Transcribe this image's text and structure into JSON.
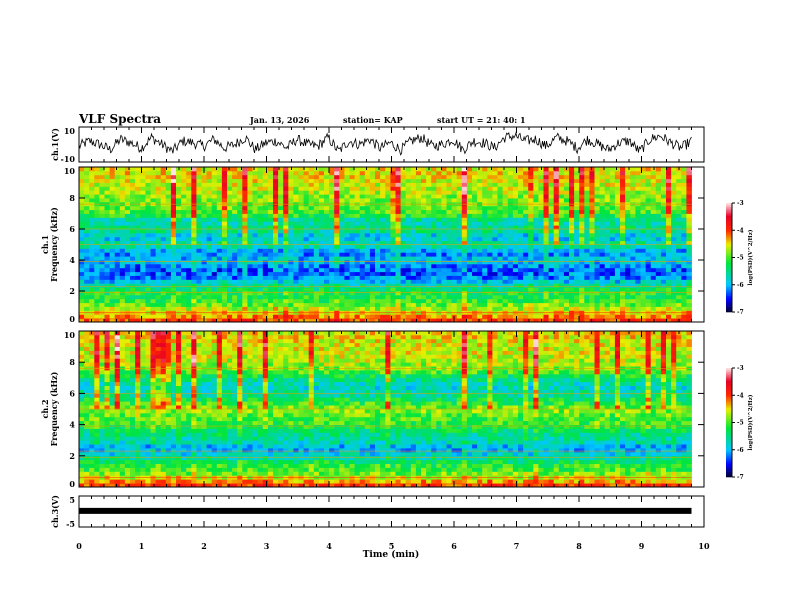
{
  "header": {
    "title": "VLF Spectra",
    "date": "Jan. 13, 2026",
    "station": "station= KAP",
    "start": "start UT =  21: 40: 1"
  },
  "chart_data": [
    {
      "type": "line",
      "name": "ch1-waveform",
      "ylabel": "ch.1(V)",
      "xlim": [
        0,
        10
      ],
      "ylim": [
        -10,
        10
      ],
      "yticks": [
        "10",
        "-10"
      ],
      "x_end": 9.8,
      "values": [
        -1,
        2,
        0,
        -3,
        3,
        1,
        -2,
        4,
        0,
        -4,
        2,
        1,
        -1,
        3,
        -2,
        0,
        4,
        -3,
        1,
        2,
        -2,
        3,
        0,
        -1,
        4,
        -4,
        2,
        0,
        3,
        -2,
        1,
        -3,
        2,
        4,
        -1,
        0,
        3,
        -3,
        2,
        1,
        -2,
        4,
        5,
        2,
        3,
        -1,
        4,
        2,
        -2,
        3,
        0,
        -3,
        1,
        2,
        -4,
        3,
        5,
        1,
        -2,
        2
      ]
    },
    {
      "type": "heatmap",
      "name": "ch1-spectrogram",
      "ylabel": "ch.1\nFrequency (kHz)",
      "xlim": [
        0,
        10
      ],
      "ylim": [
        0,
        10
      ],
      "yticks": [
        "0",
        "2",
        "4",
        "6",
        "8",
        "10"
      ],
      "x_end": 9.8,
      "freq_khz": [
        0,
        0.5,
        1,
        1.5,
        2,
        2.5,
        3,
        3.5,
        4,
        4.5,
        5,
        5.5,
        6,
        6.5,
        7,
        7.5,
        8,
        8.5,
        9,
        9.5,
        10
      ],
      "mean_log_psd": [
        -3.9,
        -4.4,
        -4.8,
        -5.2,
        -5.2,
        -5.8,
        -6.3,
        -6.3,
        -5.9,
        -6.2,
        -5.5,
        -6.0,
        -5.4,
        -5.7,
        -5.0,
        -4.9,
        -4.8,
        -4.7,
        -4.6,
        -4.5,
        -4.5
      ],
      "colorbar": {
        "label": "log(PSD)(V^2/Hz)",
        "range": [
          -7,
          -3
        ],
        "ticks": [
          "-3",
          "-4",
          "-5",
          "-6",
          "-7"
        ]
      }
    },
    {
      "type": "heatmap",
      "name": "ch2-spectrogram",
      "ylabel": "ch.2\nFrequency (kHz)",
      "xlim": [
        0,
        10
      ],
      "ylim": [
        0,
        10
      ],
      "yticks": [
        "0",
        "2",
        "4",
        "6",
        "8",
        "10"
      ],
      "x_end": 9.8,
      "freq_khz": [
        0,
        0.5,
        1,
        1.5,
        2,
        2.5,
        3,
        3.5,
        4,
        4.5,
        5,
        5.5,
        6,
        6.5,
        7,
        7.5,
        8,
        8.5,
        9,
        9.5,
        10
      ],
      "mean_log_psd": [
        -3.9,
        -4.5,
        -5.0,
        -5.2,
        -5.7,
        -6.1,
        -5.6,
        -5.5,
        -5.1,
        -5.0,
        -4.8,
        -5.2,
        -5.6,
        -5.8,
        -5.4,
        -4.9,
        -4.7,
        -4.6,
        -4.6,
        -4.5,
        -4.5
      ],
      "colorbar": {
        "label": "log(PSD)(V^2/Hz)",
        "range": [
          -7,
          -3
        ],
        "ticks": [
          "-3",
          "-4",
          "-5",
          "-6",
          "-7"
        ]
      }
    },
    {
      "type": "line",
      "name": "ch3-waveform",
      "ylabel": "ch.3(V)",
      "xlabel": "Time (min)",
      "xlim": [
        0,
        10
      ],
      "ylim": [
        -5,
        5
      ],
      "yticks": [
        "5",
        "-5"
      ],
      "xticks": [
        "0",
        "1",
        "2",
        "3",
        "4",
        "5",
        "6",
        "7",
        "8",
        "9",
        "10"
      ],
      "x_end": 9.8,
      "values": [
        0.2,
        0.2
      ]
    }
  ]
}
